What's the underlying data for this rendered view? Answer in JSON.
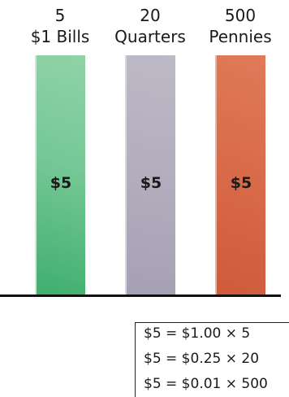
{
  "columns": [
    {
      "count": "5",
      "unit": "$1 Bills",
      "amount": "$5",
      "color": "#76c896"
    },
    {
      "count": "20",
      "unit": "Quarters",
      "amount": "$5",
      "color": "#b3aebe"
    },
    {
      "count": "500",
      "unit": "Pennies",
      "amount": "$5",
      "color": "#d86a4a"
    }
  ],
  "equations": [
    "$5 = $1.00 × 5",
    "$5 = $0.25 × 20",
    "$5 = $0.01 × 500"
  ]
}
